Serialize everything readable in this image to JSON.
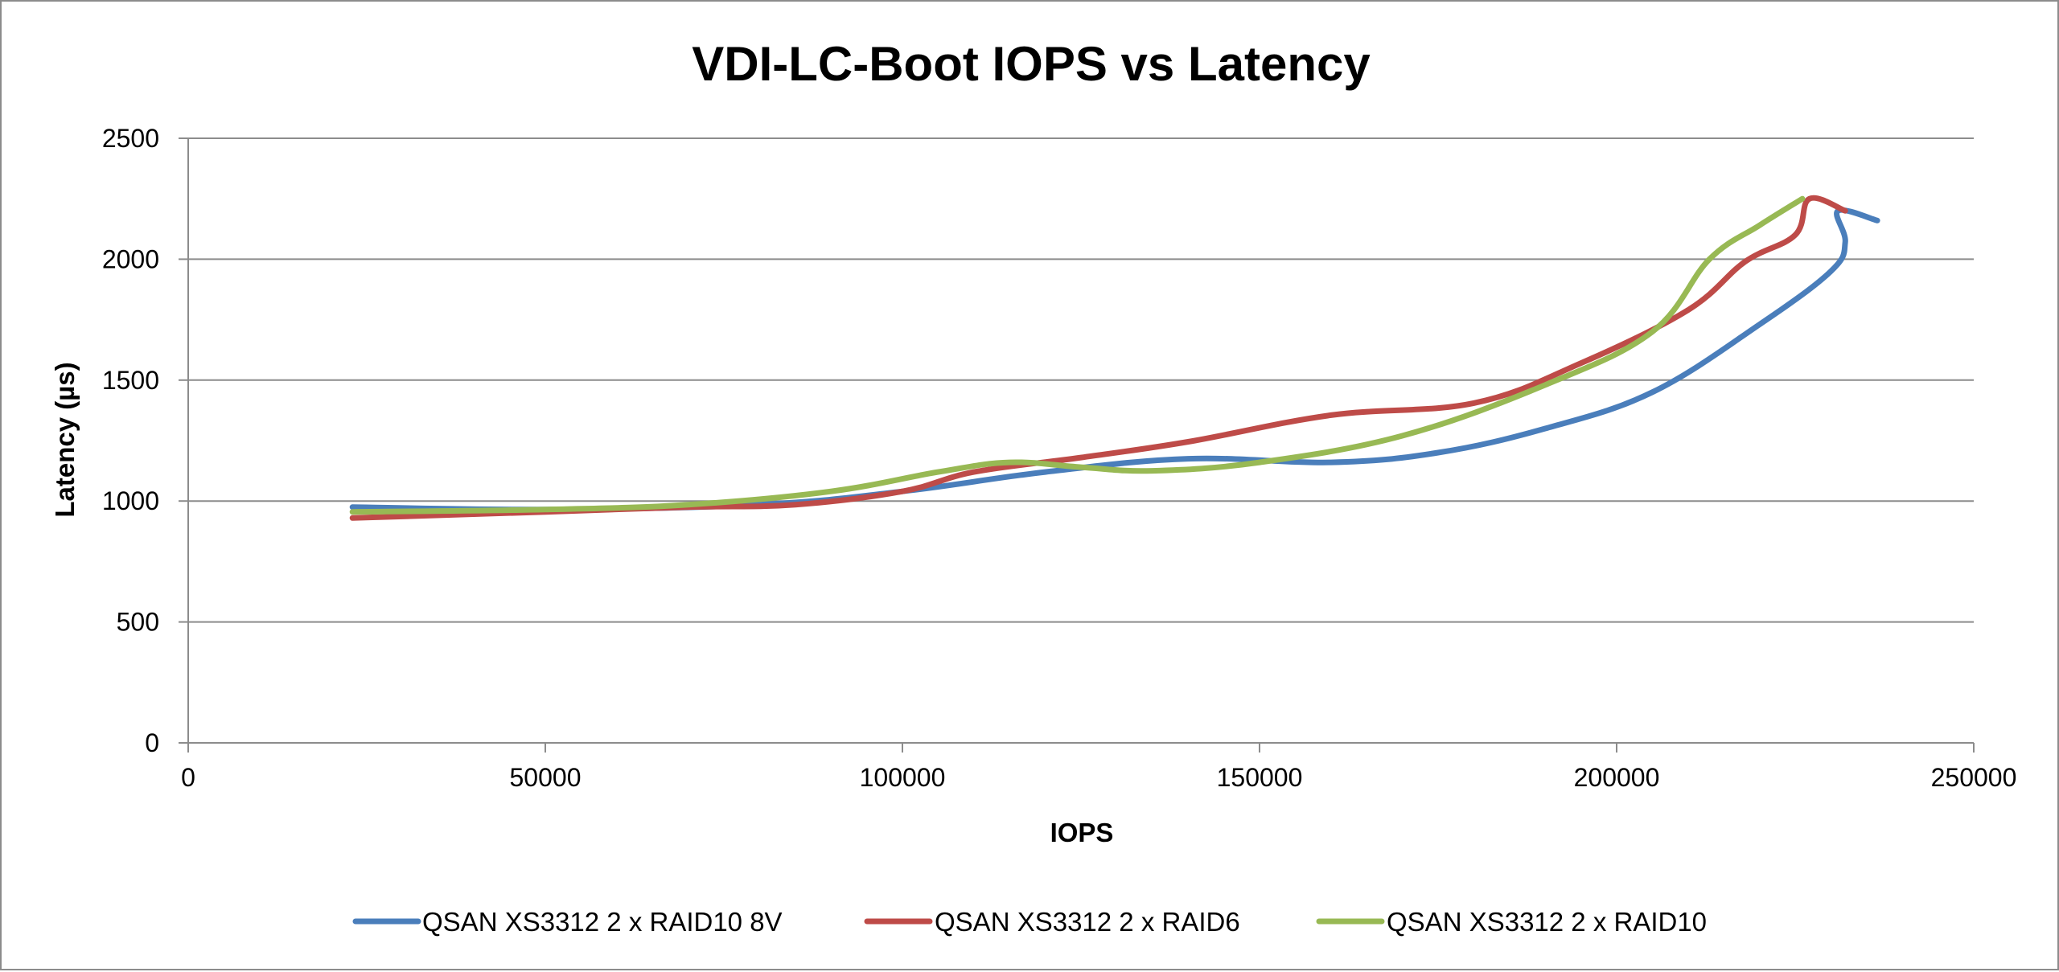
{
  "chart_data": {
    "type": "line",
    "title": "VDI-LC-Boot IOPS vs Latency",
    "xlabel": "IOPS",
    "ylabel": "Latency (µs)",
    "xlim": [
      0,
      250000
    ],
    "ylim": [
      0,
      2500
    ],
    "x_ticks": [
      "0",
      "50000",
      "100000",
      "150000",
      "200000",
      "250000"
    ],
    "y_ticks": [
      "0",
      "500",
      "1000",
      "1500",
      "2000",
      "2500"
    ],
    "grid": "horizontal",
    "legend_position": "bottom",
    "series": [
      {
        "name": "QSAN XS3312 2 x RAID10 8V",
        "color": "#4a7ebb",
        "points": [
          [
            23000,
            975
          ],
          [
            50000,
            965
          ],
          [
            80000,
            985
          ],
          [
            100000,
            1040
          ],
          [
            120000,
            1120
          ],
          [
            140000,
            1175
          ],
          [
            160000,
            1160
          ],
          [
            175000,
            1200
          ],
          [
            190000,
            1300
          ],
          [
            205000,
            1450
          ],
          [
            220000,
            1730
          ],
          [
            230000,
            1950
          ],
          [
            232000,
            2070
          ],
          [
            231000,
            2200
          ],
          [
            236500,
            2160
          ]
        ]
      },
      {
        "name": "QSAN XS3312 2 x RAID6",
        "color": "#be4b48",
        "points": [
          [
            23000,
            930
          ],
          [
            50000,
            955
          ],
          [
            70000,
            975
          ],
          [
            85000,
            985
          ],
          [
            100000,
            1040
          ],
          [
            110000,
            1120
          ],
          [
            125000,
            1180
          ],
          [
            140000,
            1245
          ],
          [
            160000,
            1355
          ],
          [
            180000,
            1405
          ],
          [
            195000,
            1570
          ],
          [
            210000,
            1790
          ],
          [
            218000,
            1990
          ],
          [
            225000,
            2100
          ],
          [
            227000,
            2250
          ],
          [
            232000,
            2200
          ]
        ]
      },
      {
        "name": "QSAN XS3312 2 x RAID10",
        "color": "#98b954",
        "points": [
          [
            23000,
            955
          ],
          [
            50000,
            965
          ],
          [
            70000,
            985
          ],
          [
            90000,
            1040
          ],
          [
            105000,
            1120
          ],
          [
            115000,
            1160
          ],
          [
            125000,
            1140
          ],
          [
            135000,
            1125
          ],
          [
            150000,
            1160
          ],
          [
            170000,
            1270
          ],
          [
            190000,
            1480
          ],
          [
            205000,
            1700
          ],
          [
            213000,
            2000
          ],
          [
            220000,
            2140
          ],
          [
            226000,
            2250
          ]
        ]
      }
    ]
  }
}
